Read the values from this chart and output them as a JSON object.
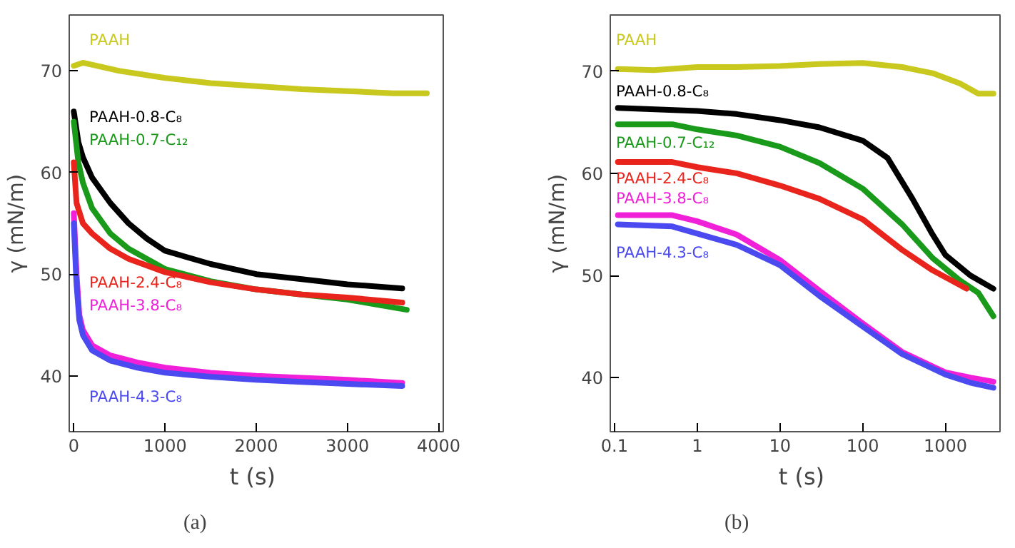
{
  "chart_data": [
    {
      "type": "line",
      "xlabel": "t  (s)",
      "ylabel": "γ (mN/m)",
      "annotations": [
        "(a)"
      ],
      "xlim": [
        -50,
        4050
      ],
      "ylim": [
        34.5,
        75.5
      ],
      "xticks": [
        0,
        1000,
        2000,
        3000,
        4000
      ],
      "yticks": [
        40,
        50,
        60,
        70
      ],
      "grid": false,
      "legend": false,
      "line_style": "solid",
      "series": [
        {
          "name": "PAAH",
          "color": "#c8c81e",
          "x": [
            0,
            100,
            500,
            1000,
            1500,
            2000,
            2500,
            3000,
            3500,
            3870
          ],
          "values": [
            70.5,
            70.8,
            70,
            69.3,
            68.8,
            68.5,
            68.2,
            68,
            67.8,
            67.8
          ]
        },
        {
          "name": "PAAH-0.8-C₈",
          "color": "#000000",
          "x": [
            0,
            50,
            100,
            200,
            400,
            600,
            800,
            1000,
            1500,
            2000,
            2500,
            3000,
            3600
          ],
          "values": [
            66,
            63,
            61.5,
            59.5,
            57,
            55,
            53.5,
            52.3,
            51,
            50,
            49.5,
            49,
            48.6
          ]
        },
        {
          "name": "PAAH-0.7-C₁₂",
          "color": "#1a9a1a",
          "x": [
            0,
            50,
            100,
            200,
            400,
            600,
            800,
            1000,
            1500,
            2000,
            2500,
            3000,
            3650
          ],
          "values": [
            65,
            61,
            59,
            56.5,
            54,
            52.5,
            51.5,
            50.5,
            49.3,
            48.5,
            48,
            47.5,
            46.5
          ]
        },
        {
          "name": "PAAH-2.4-C₈",
          "color": "#e8241c",
          "x": [
            0,
            30,
            100,
            200,
            400,
            600,
            1000,
            1500,
            2000,
            2500,
            3000,
            3600
          ],
          "values": [
            61,
            57,
            55,
            54,
            52.5,
            51.5,
            50.2,
            49.2,
            48.5,
            48,
            47.7,
            47.2
          ]
        },
        {
          "name": "PAAH-3.8-C₈",
          "color": "#f020d8",
          "x": [
            0,
            30,
            60,
            100,
            200,
            400,
            700,
            1000,
            1500,
            2000,
            2500,
            3000,
            3600
          ],
          "values": [
            56,
            50,
            46,
            44.5,
            43,
            42,
            41.3,
            40.8,
            40.3,
            40,
            39.8,
            39.6,
            39.3
          ]
        },
        {
          "name": "PAAH-4.3-C₈",
          "color": "#4a4af0",
          "x": [
            0,
            30,
            60,
            100,
            200,
            400,
            700,
            1000,
            1500,
            2000,
            2500,
            3000,
            3600
          ],
          "values": [
            55,
            49,
            45.5,
            44,
            42.5,
            41.5,
            40.8,
            40.3,
            39.9,
            39.6,
            39.4,
            39.2,
            39
          ]
        }
      ]
    },
    {
      "type": "line",
      "xlabel": "t  (s)",
      "ylabel": "γ (mN/m)",
      "annotations": [
        "(b)"
      ],
      "log": "x",
      "xlim": [
        0.089,
        4570
      ],
      "ylim": [
        34.7,
        75.5
      ],
      "xticks": [
        0.1,
        1,
        10,
        100,
        1000
      ],
      "yticks": [
        40,
        50,
        60,
        70
      ],
      "grid": false,
      "legend": false,
      "line_style": "solid",
      "series": [
        {
          "name": "PAAH",
          "color": "#c8c81e",
          "x": [
            0.11,
            0.3,
            1,
            3,
            10,
            30,
            100,
            300,
            700,
            1500,
            2500,
            3800
          ],
          "values": [
            70.2,
            70.1,
            70.4,
            70.4,
            70.5,
            70.7,
            70.8,
            70.4,
            69.8,
            68.8,
            67.8,
            67.8
          ]
        },
        {
          "name": "PAAH-0.8-C₈",
          "color": "#000000",
          "x": [
            0.11,
            1,
            3,
            10,
            30,
            100,
            200,
            400,
            700,
            1000,
            2000,
            3800
          ],
          "values": [
            66.4,
            66.1,
            65.8,
            65.2,
            64.5,
            63.2,
            61.5,
            57.5,
            54,
            52,
            50,
            48.7
          ]
        },
        {
          "name": "PAAH-0.7-C₁₂",
          "color": "#1a9a1a",
          "x": [
            0.11,
            0.5,
            1,
            3,
            10,
            30,
            100,
            300,
            700,
            1500,
            2500,
            3800
          ],
          "values": [
            64.8,
            64.8,
            64.3,
            63.7,
            62.6,
            61,
            58.5,
            55,
            51.7,
            49.5,
            48.3,
            46
          ]
        },
        {
          "name": "PAAH-2.4-C₈",
          "color": "#e8241c",
          "x": [
            0.11,
            0.5,
            1,
            3,
            10,
            30,
            100,
            300,
            700,
            1800
          ],
          "values": [
            61.1,
            61.1,
            60.6,
            60,
            58.8,
            57.5,
            55.5,
            52.5,
            50.5,
            48.7
          ]
        },
        {
          "name": "PAAH-3.8-C₈",
          "color": "#f020d8",
          "x": [
            0.11,
            0.5,
            1,
            3,
            10,
            30,
            100,
            300,
            1000,
            2000,
            3800
          ],
          "values": [
            55.9,
            55.9,
            55.3,
            54,
            51.5,
            48.5,
            45.3,
            42.5,
            40.5,
            40,
            39.6
          ]
        },
        {
          "name": "PAAH-4.3-C₈",
          "color": "#4a4af0",
          "x": [
            0.11,
            0.5,
            1,
            3,
            10,
            30,
            100,
            300,
            1000,
            2000,
            3800
          ],
          "values": [
            55,
            54.8,
            54.1,
            53,
            51,
            48,
            45,
            42.3,
            40.3,
            39.5,
            39
          ]
        }
      ]
    }
  ]
}
